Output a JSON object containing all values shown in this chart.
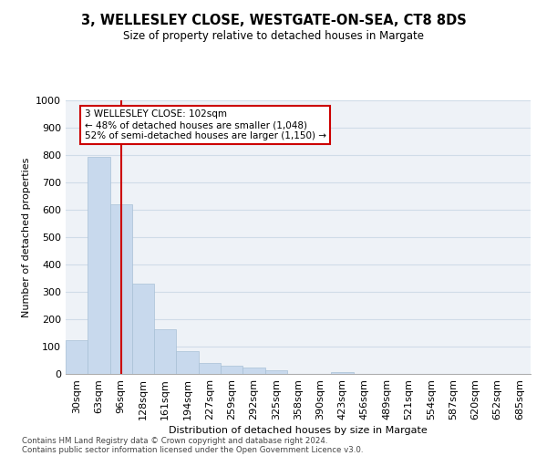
{
  "title": "3, WELLESLEY CLOSE, WESTGATE-ON-SEA, CT8 8DS",
  "subtitle": "Size of property relative to detached houses in Margate",
  "xlabel": "Distribution of detached houses by size in Margate",
  "ylabel": "Number of detached properties",
  "bar_color": "#c8d9ed",
  "bar_edge_color": "#a8c0d6",
  "grid_color": "#d0dce8",
  "vline_color": "#cc0000",
  "annotation_text": "3 WELLESLEY CLOSE: 102sqm\n← 48% of detached houses are smaller (1,048)\n52% of semi-detached houses are larger (1,150) →",
  "annotation_box_color": "#ffffff",
  "annotation_box_edge": "#cc0000",
  "categories": [
    "30sqm",
    "63sqm",
    "96sqm",
    "128sqm",
    "161sqm",
    "194sqm",
    "227sqm",
    "259sqm",
    "292sqm",
    "325sqm",
    "358sqm",
    "390sqm",
    "423sqm",
    "456sqm",
    "489sqm",
    "521sqm",
    "554sqm",
    "587sqm",
    "620sqm",
    "652sqm",
    "685sqm"
  ],
  "values": [
    125,
    795,
    620,
    330,
    163,
    82,
    40,
    30,
    25,
    13,
    0,
    0,
    7,
    0,
    0,
    0,
    0,
    0,
    0,
    0,
    0
  ],
  "ylim": [
    0,
    1000
  ],
  "yticks": [
    0,
    100,
    200,
    300,
    400,
    500,
    600,
    700,
    800,
    900,
    1000
  ],
  "footer_line1": "Contains HM Land Registry data © Crown copyright and database right 2024.",
  "footer_line2": "Contains public sector information licensed under the Open Government Licence v3.0.",
  "bg_color": "#eef2f7",
  "vline_x_index": 2
}
